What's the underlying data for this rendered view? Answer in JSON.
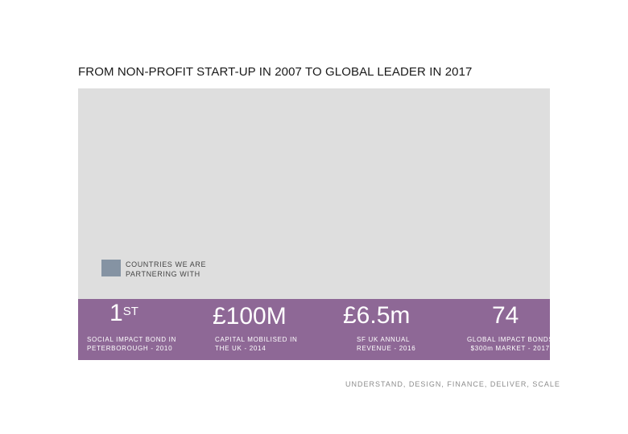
{
  "title": "FROM NON-PROFIT START-UP IN 2007 TO GLOBAL LEADER IN 2017",
  "legend": {
    "label": "COUNTRIES WE ARE PARTNERING WITH",
    "swatch_color": "#8593a3"
  },
  "colors": {
    "map_background": "#dedede",
    "stats_band": "#8e6896"
  },
  "stats": [
    {
      "value": "1",
      "value_suffix": "ST",
      "caption_line1": "SOCIAL IMPACT BOND IN",
      "caption_line2": "PETERBOROUGH - 2010"
    },
    {
      "value": "£100M",
      "caption_line1": "CAPITAL MOBILISED IN",
      "caption_line2": "THE UK - 2014"
    },
    {
      "value": "£6.5m",
      "caption_line1": "SF UK ANNUAL",
      "caption_line2": "REVENUE - 2016"
    },
    {
      "value": "74",
      "caption_line1": "GLOBAL IMPACT BONDS",
      "caption_line2": "$300m MARKET - 2017"
    }
  ],
  "tagline": "UNDERSTAND, DESIGN, FINANCE, DELIVER, SCALE"
}
